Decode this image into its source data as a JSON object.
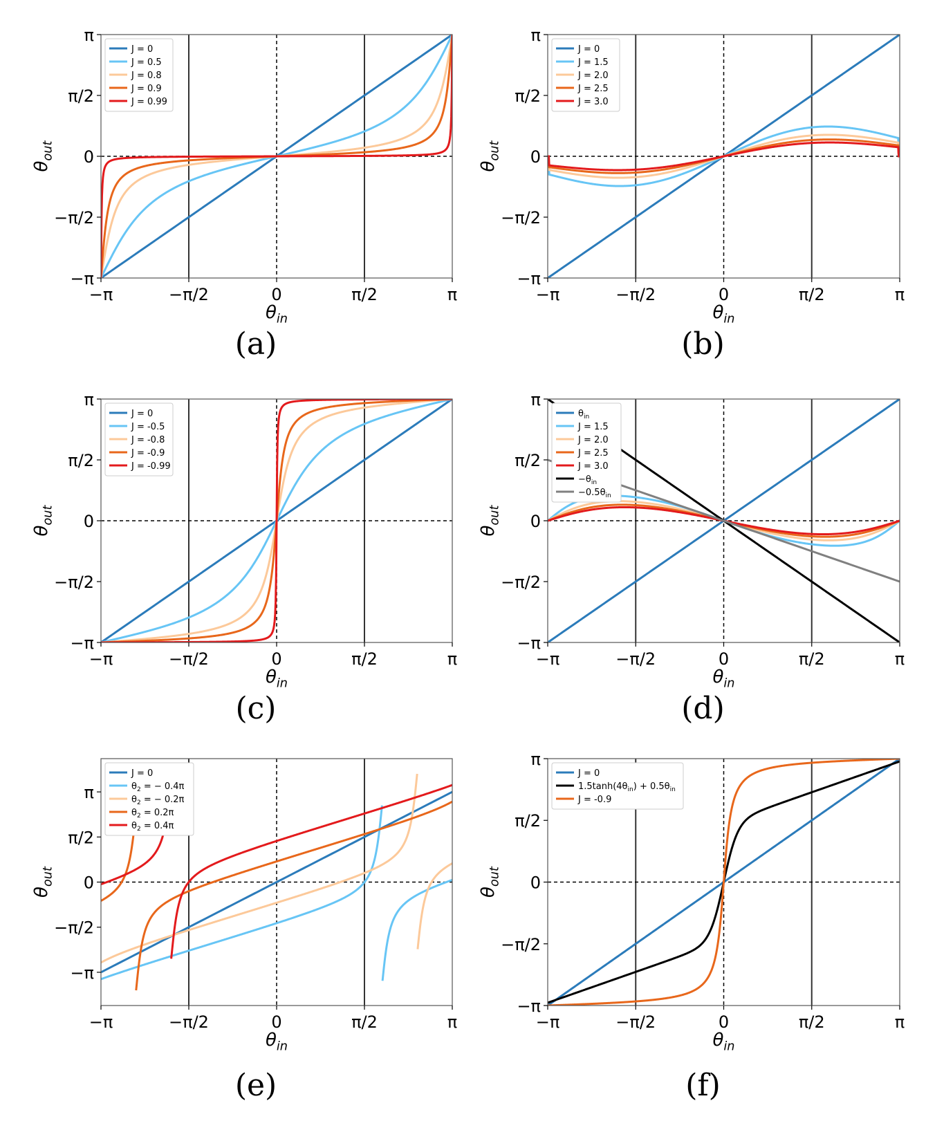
{
  "figure": {
    "title": "",
    "panels": 6
  },
  "chart_data": [
    {
      "id": "a",
      "caption": "(a)",
      "type": "line",
      "xlabel_main": "θ",
      "xlabel_sub": "in",
      "ylabel_main": "θ",
      "ylabel_sub": "out",
      "xlim": [
        -3.14159,
        3.14159
      ],
      "ylim": [
        -3.14159,
        3.14159
      ],
      "x_ticks": [
        {
          "value": -3.14159,
          "label": "−π"
        },
        {
          "value": -1.5708,
          "label": "−π/2"
        },
        {
          "value": 0,
          "label": "0"
        },
        {
          "value": 1.5708,
          "label": "π/2"
        },
        {
          "value": 3.14159,
          "label": "π"
        }
      ],
      "y_ticks": [
        {
          "value": -3.14159,
          "label": "−π"
        },
        {
          "value": -1.5708,
          "label": "−π/2"
        },
        {
          "value": 0,
          "label": "0"
        },
        {
          "value": 1.5708,
          "label": "π/2"
        },
        {
          "value": 3.14159,
          "label": "π"
        }
      ],
      "vlines_solid": [
        -1.5708,
        1.5708
      ],
      "vlines_dashed": [
        0
      ],
      "hlines_dashed": [
        0
      ],
      "legend": "top-left",
      "series": [
        {
          "name": "J = 0",
          "color": "#2b7bba",
          "func": "identity"
        },
        {
          "name": "J = 0.5",
          "color": "#67c5f5",
          "func": "mobius",
          "J": 0.5
        },
        {
          "name": "J = 0.8",
          "color": "#fcc99a",
          "func": "mobius",
          "J": 0.8
        },
        {
          "name": "J = 0.9",
          "color": "#e8671b",
          "func": "mobius",
          "J": 0.9
        },
        {
          "name": "J = 0.99",
          "color": "#e31a1c",
          "func": "mobius",
          "J": 0.99
        }
      ]
    },
    {
      "id": "b",
      "caption": "(b)",
      "type": "line",
      "xlabel_main": "θ",
      "xlabel_sub": "in",
      "ylabel_main": "θ",
      "ylabel_sub": "out",
      "xlim": [
        -3.14159,
        3.14159
      ],
      "ylim": [
        -3.14159,
        3.14159
      ],
      "x_ticks": [
        {
          "value": -3.14159,
          "label": "−π"
        },
        {
          "value": -1.5708,
          "label": "−π/2"
        },
        {
          "value": 0,
          "label": "0"
        },
        {
          "value": 1.5708,
          "label": "π/2"
        },
        {
          "value": 3.14159,
          "label": "π"
        }
      ],
      "y_ticks": [
        {
          "value": -3.14159,
          "label": "−π"
        },
        {
          "value": -1.5708,
          "label": "−π/2"
        },
        {
          "value": 0,
          "label": "0"
        },
        {
          "value": 1.5708,
          "label": "π/2"
        },
        {
          "value": 3.14159,
          "label": "π"
        }
      ],
      "vlines_solid": [
        -1.5708,
        1.5708
      ],
      "vlines_dashed": [
        0
      ],
      "hlines_dashed": [
        0
      ],
      "legend": "top-left",
      "series": [
        {
          "name": "J = 0",
          "color": "#2b7bba",
          "func": "identity"
        },
        {
          "name": "J = 1.5",
          "color": "#67c5f5",
          "func": "mobius",
          "J": 1.5
        },
        {
          "name": "J = 2.0",
          "color": "#fcc99a",
          "func": "mobius",
          "J": 2.0
        },
        {
          "name": "J = 2.5",
          "color": "#e8671b",
          "func": "mobius",
          "J": 2.5
        },
        {
          "name": "J = 3.0",
          "color": "#e31a1c",
          "func": "mobius",
          "J": 3.0
        }
      ]
    },
    {
      "id": "c",
      "caption": "(c)",
      "type": "line",
      "xlabel_main": "θ",
      "xlabel_sub": "in",
      "ylabel_main": "θ",
      "ylabel_sub": "out",
      "xlim": [
        -3.14159,
        3.14159
      ],
      "ylim": [
        -3.14159,
        3.14159
      ],
      "x_ticks": [
        {
          "value": -3.14159,
          "label": "−π"
        },
        {
          "value": -1.5708,
          "label": "−π/2"
        },
        {
          "value": 0,
          "label": "0"
        },
        {
          "value": 1.5708,
          "label": "π/2"
        },
        {
          "value": 3.14159,
          "label": "π"
        }
      ],
      "y_ticks": [
        {
          "value": -3.14159,
          "label": "−π"
        },
        {
          "value": -1.5708,
          "label": "−π/2"
        },
        {
          "value": 0,
          "label": "0"
        },
        {
          "value": 1.5708,
          "label": "π/2"
        },
        {
          "value": 3.14159,
          "label": "π"
        }
      ],
      "vlines_solid": [
        -1.5708,
        1.5708
      ],
      "vlines_dashed": [
        0
      ],
      "hlines_dashed": [
        0
      ],
      "legend": "top-left",
      "series": [
        {
          "name": "J = 0",
          "color": "#2b7bba",
          "func": "identity"
        },
        {
          "name": "J = -0.5",
          "color": "#67c5f5",
          "func": "mobius",
          "J": -0.5
        },
        {
          "name": "J = -0.8",
          "color": "#fcc99a",
          "func": "mobius",
          "J": -0.8
        },
        {
          "name": "J = -0.9",
          "color": "#e8671b",
          "func": "mobius",
          "J": -0.9
        },
        {
          "name": "J = -0.99",
          "color": "#e31a1c",
          "func": "mobius",
          "J": -0.99
        }
      ]
    },
    {
      "id": "d",
      "caption": "(d)",
      "type": "line",
      "xlabel_main": "θ",
      "xlabel_sub": "in",
      "ylabel_main": "θ",
      "ylabel_sub": "out",
      "xlim": [
        -3.14159,
        3.14159
      ],
      "ylim": [
        -3.14159,
        3.14159
      ],
      "x_ticks": [
        {
          "value": -3.14159,
          "label": "−π"
        },
        {
          "value": -1.5708,
          "label": "−π/2"
        },
        {
          "value": 0,
          "label": "0"
        },
        {
          "value": 1.5708,
          "label": "π/2"
        },
        {
          "value": 3.14159,
          "label": "π"
        }
      ],
      "y_ticks": [
        {
          "value": -3.14159,
          "label": "−π"
        },
        {
          "value": -1.5708,
          "label": "−π/2"
        },
        {
          "value": 0,
          "label": "0"
        },
        {
          "value": 1.5708,
          "label": "π/2"
        },
        {
          "value": 3.14159,
          "label": "π"
        }
      ],
      "vlines_solid": [
        -1.5708,
        1.5708
      ],
      "vlines_dashed": [
        0
      ],
      "hlines_dashed": [
        0
      ],
      "legend": "top-left",
      "series": [
        {
          "name": "θ",
          "sub": "in",
          "color": "#2b7bba",
          "func": "identity"
        },
        {
          "name": "J = 1.5",
          "color": "#67c5f5",
          "func": "mobiusNeg",
          "J": 1.5
        },
        {
          "name": "J = 2.0",
          "color": "#fcc99a",
          "func": "mobiusNeg",
          "J": 2.0
        },
        {
          "name": "J = 2.5",
          "color": "#e8671b",
          "func": "mobiusNeg",
          "J": 2.5
        },
        {
          "name": "J = 3.0",
          "color": "#e31a1c",
          "func": "mobiusNeg",
          "J": 3.0
        },
        {
          "name": "−θ",
          "sub": "in",
          "color": "#000000",
          "func": "linear",
          "k": -1
        },
        {
          "name": "−0.5θ",
          "sub": "in",
          "color": "#808080",
          "func": "linear",
          "k": -0.5
        }
      ]
    },
    {
      "id": "e",
      "caption": "(e)",
      "type": "line",
      "xlabel_main": "θ",
      "xlabel_sub": "in",
      "ylabel_main": "θ",
      "ylabel_sub": "out",
      "xlim": [
        -3.14159,
        3.14159
      ],
      "ylim": [
        -4.3,
        4.3
      ],
      "x_ticks": [
        {
          "value": -3.14159,
          "label": "−π"
        },
        {
          "value": -1.5708,
          "label": "−π/2"
        },
        {
          "value": 0,
          "label": "0"
        },
        {
          "value": 1.5708,
          "label": "π/2"
        },
        {
          "value": 3.14159,
          "label": "π"
        }
      ],
      "y_ticks": [
        {
          "value": -3.14159,
          "label": "−π"
        },
        {
          "value": -1.5708,
          "label": "−π/2"
        },
        {
          "value": 0,
          "label": "0"
        },
        {
          "value": 1.5708,
          "label": "π/2"
        },
        {
          "value": 3.14159,
          "label": "π"
        }
      ],
      "vlines_solid": [
        -1.5708,
        1.5708
      ],
      "vlines_dashed": [
        0
      ],
      "hlines_dashed": [
        0
      ],
      "legend": "top-left",
      "series": [
        {
          "name": "J = 0",
          "color": "#2b7bba",
          "func": "identity"
        },
        {
          "name": "θ",
          "sub": "2",
          "suffix": " = − 0.4π",
          "color": "#67c5f5",
          "func": "shifted",
          "J": 0.9,
          "t2": -1.2566
        },
        {
          "name": "θ",
          "sub": "2",
          "suffix": " = − 0.2π",
          "color": "#fcc99a",
          "func": "shifted",
          "J": 0.9,
          "t2": -0.6283
        },
        {
          "name": "θ",
          "sub": "2",
          "suffix": " = 0.2π",
          "color": "#e8671b",
          "func": "shifted",
          "J": 0.9,
          "t2": 0.6283
        },
        {
          "name": "θ",
          "sub": "2",
          "suffix": " = 0.4π",
          "color": "#e31a1c",
          "func": "shifted",
          "J": 0.9,
          "t2": 1.2566
        }
      ]
    },
    {
      "id": "f",
      "caption": "(f)",
      "type": "line",
      "xlabel_main": "θ",
      "xlabel_sub": "in",
      "ylabel_main": "θ",
      "ylabel_sub": "out",
      "xlim": [
        -3.14159,
        3.14159
      ],
      "ylim": [
        -3.14159,
        3.14159
      ],
      "x_ticks": [
        {
          "value": -3.14159,
          "label": "−π"
        },
        {
          "value": -1.5708,
          "label": "−π/2"
        },
        {
          "value": 0,
          "label": "0"
        },
        {
          "value": 1.5708,
          "label": "π/2"
        },
        {
          "value": 3.14159,
          "label": "π"
        }
      ],
      "y_ticks": [
        {
          "value": -3.14159,
          "label": "−π"
        },
        {
          "value": -1.5708,
          "label": "−π/2"
        },
        {
          "value": 0,
          "label": "0"
        },
        {
          "value": 1.5708,
          "label": "π/2"
        },
        {
          "value": 3.14159,
          "label": "π"
        }
      ],
      "vlines_solid": [
        -1.5708,
        1.5708
      ],
      "vlines_dashed": [
        0
      ],
      "hlines_dashed": [
        0
      ],
      "legend": "top-left",
      "series": [
        {
          "name": "J = 0",
          "color": "#2b7bba",
          "func": "identity"
        },
        {
          "name": "1.5tanh(4θ",
          "sub": "in",
          "suffix": ") + 0.5θ",
          "sub2": "in",
          "color": "#000000",
          "func": "tanhfit"
        },
        {
          "name": "J = -0.9",
          "color": "#e8671b",
          "func": "mobius",
          "J": -0.9
        }
      ]
    }
  ]
}
